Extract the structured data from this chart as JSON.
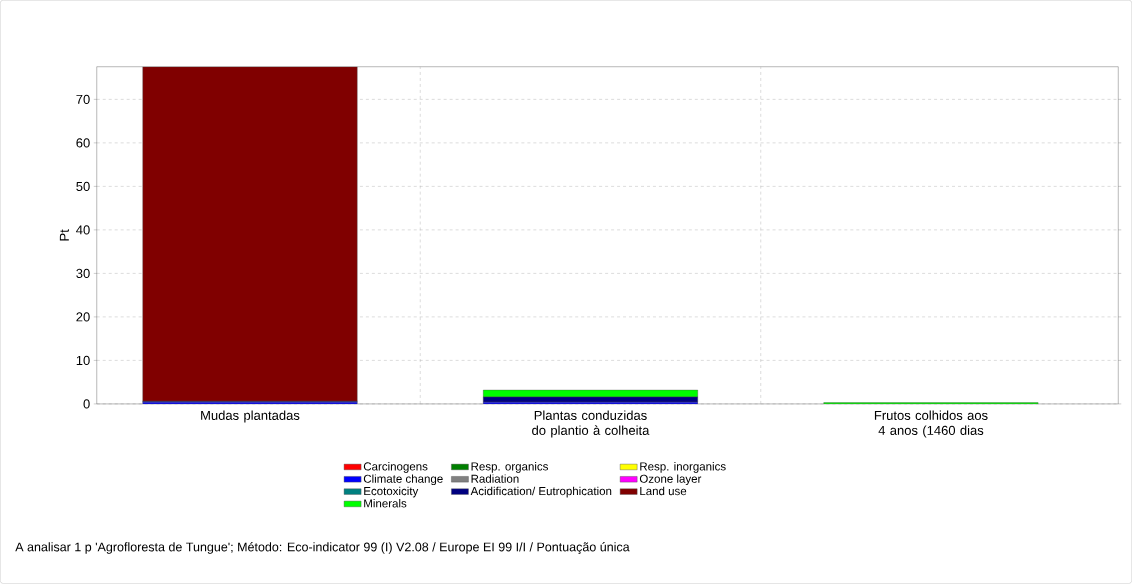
{
  "chart_data": {
    "type": "bar",
    "stacked": true,
    "ylabel": "Pt",
    "categories": [
      "Mudas plantadas",
      "Plantas conduzidas do plantio à colheita",
      "Frutos colhidos aos 4 anos (1460 dias"
    ],
    "series": [
      {
        "name": "Carcinogens",
        "color": "#ff0000",
        "values": [
          0,
          0,
          0
        ]
      },
      {
        "name": "Resp. organics",
        "color": "#008000",
        "values": [
          0,
          0,
          0
        ]
      },
      {
        "name": "Resp. inorganics",
        "color": "#ffff00",
        "values": [
          0,
          0,
          0
        ]
      },
      {
        "name": "Climate change",
        "color": "#0000ff",
        "values": [
          0.4,
          0.4,
          0
        ]
      },
      {
        "name": "Radiation",
        "color": "#808080",
        "values": [
          0,
          0,
          0
        ]
      },
      {
        "name": "Ozone layer",
        "color": "#ff00ff",
        "values": [
          0,
          0,
          0
        ]
      },
      {
        "name": "Ecotoxicity",
        "color": "#008080",
        "values": [
          0,
          0,
          0
        ]
      },
      {
        "name": "Acidification/ Eutrophication",
        "color": "#000080",
        "values": [
          0.2,
          1.2,
          0
        ]
      },
      {
        "name": "Land use",
        "color": "#800000",
        "values": [
          76.9,
          0,
          0
        ]
      },
      {
        "name": "Minerals",
        "color": "#00ff00",
        "values": [
          0,
          1.6,
          0.3
        ]
      }
    ],
    "ylim": [
      0,
      77.5
    ],
    "yticks": [
      0,
      10,
      20,
      30,
      40,
      50,
      60,
      70
    ],
    "grid": true,
    "legend": "bottom",
    "annotations": [
      "A analisar 1 p 'Agrofloresta de Tungue';  Método: Eco-indicator 99 (I) V2.08 / Europe EI 99 I/I / Pontuação única"
    ]
  }
}
